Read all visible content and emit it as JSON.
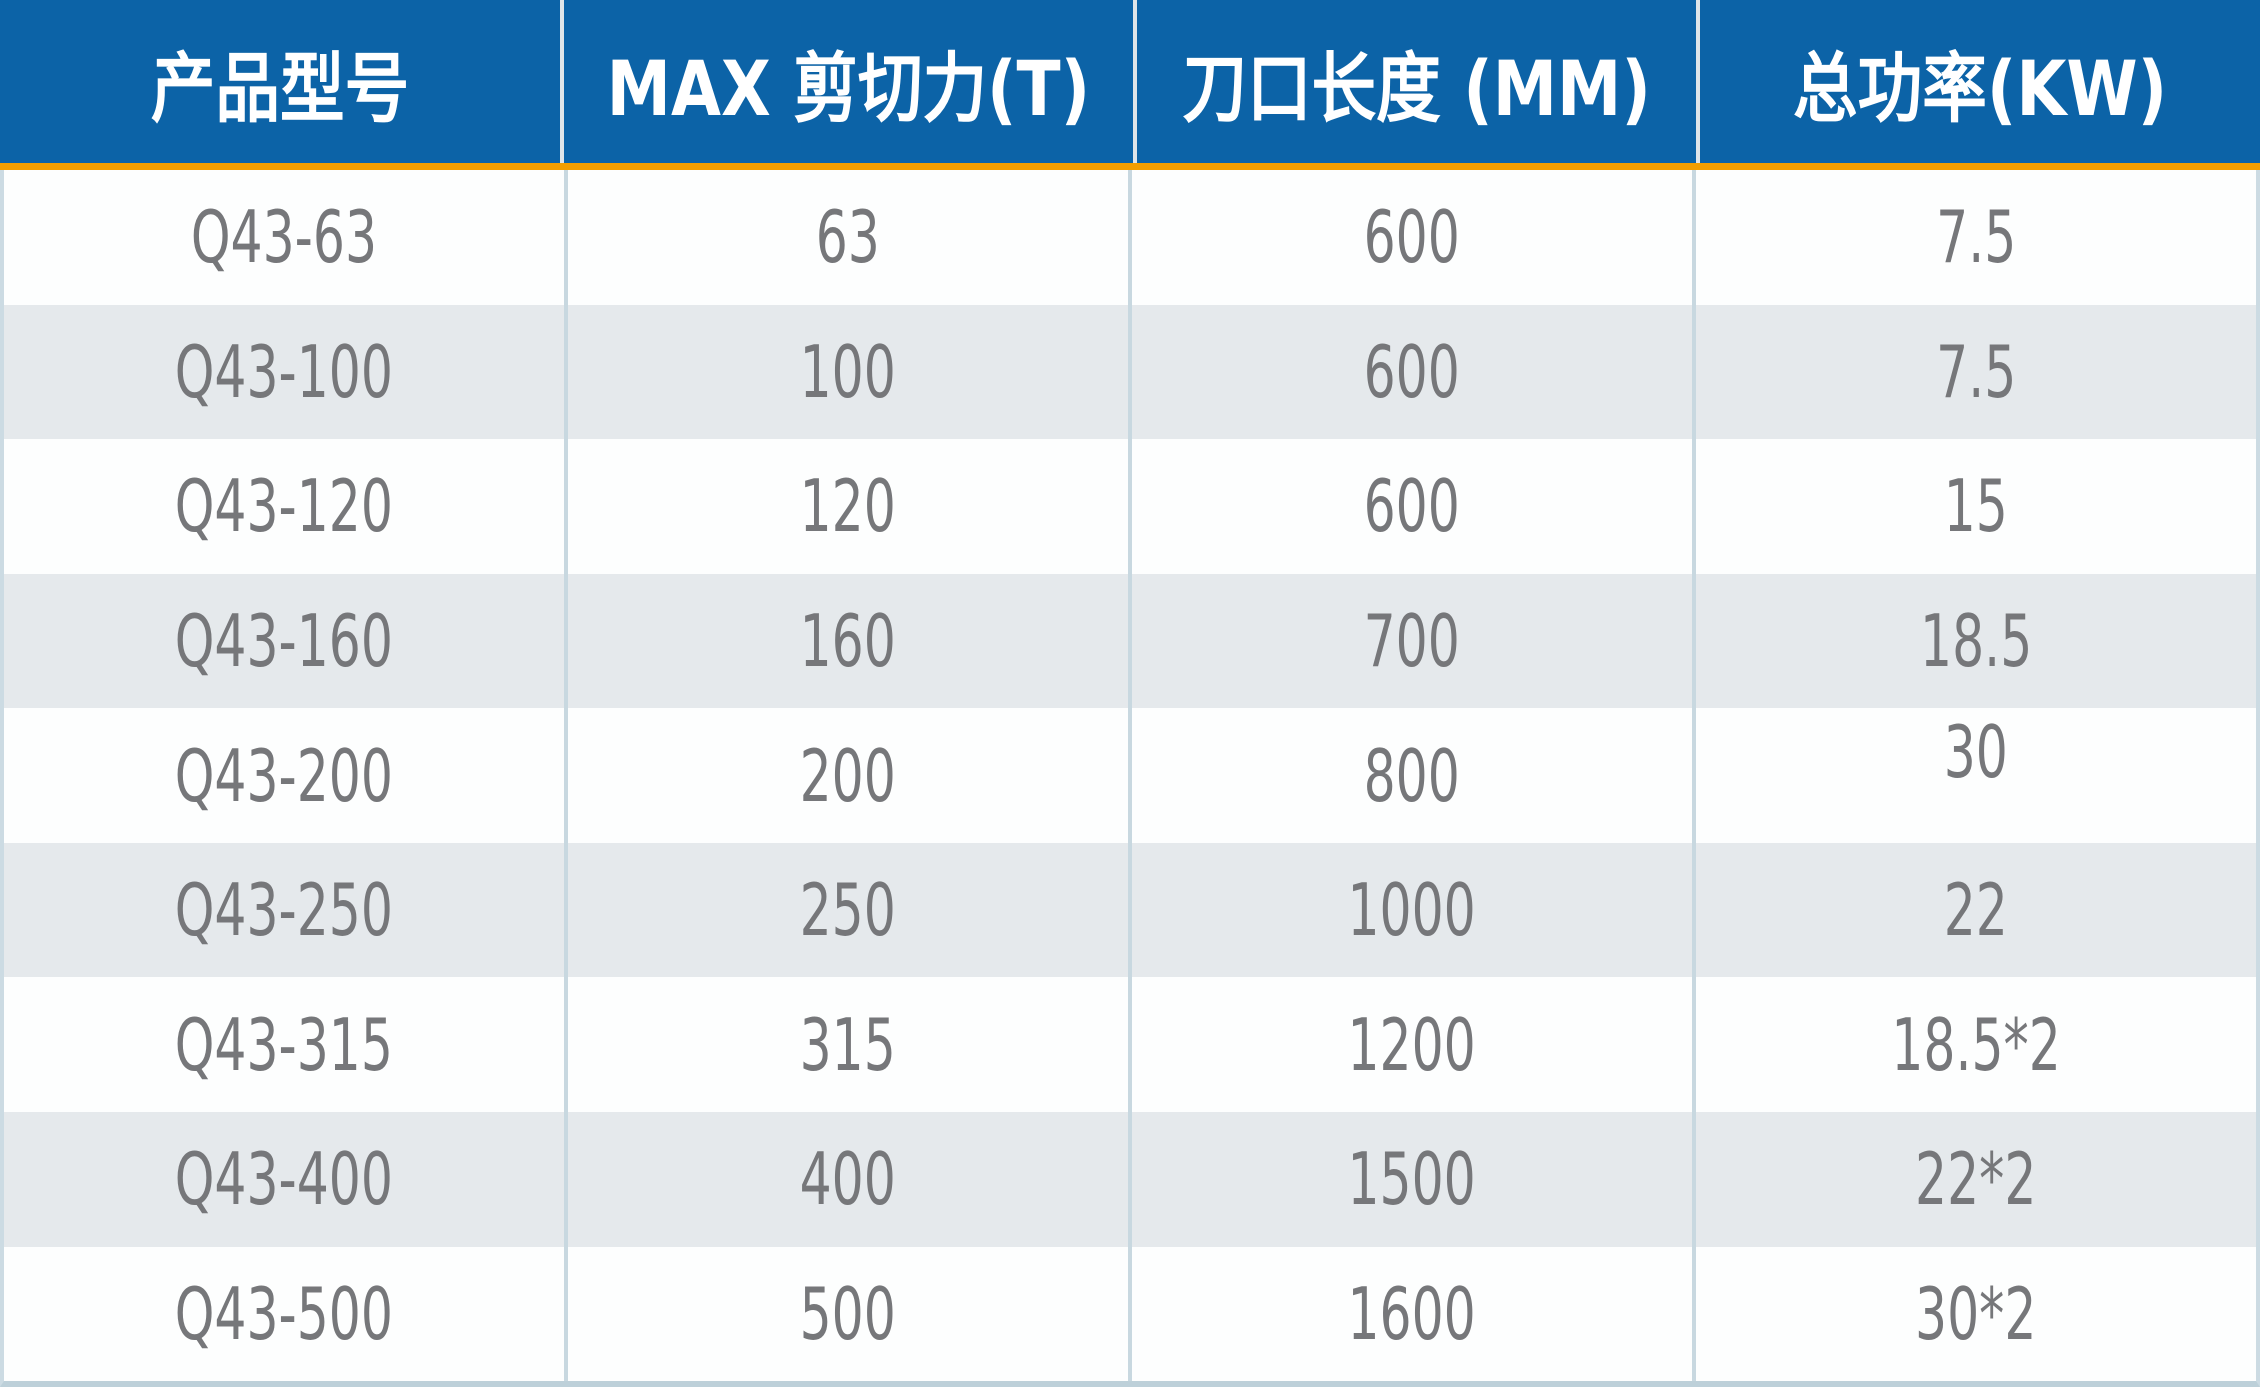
{
  "chart_data": {
    "type": "table",
    "title": "",
    "columns": [
      "产品型号",
      "MAX 剪切力(T)",
      "刀口长度 (MM)",
      "总功率(KW)"
    ],
    "rows": [
      [
        "Q43-63",
        "63",
        "600",
        "7.5"
      ],
      [
        "Q43-100",
        "100",
        "600",
        "7.5"
      ],
      [
        "Q43-120",
        "120",
        "600",
        "15"
      ],
      [
        "Q43-160",
        "160",
        "700",
        "18.5"
      ],
      [
        "Q43-200",
        "200",
        "800",
        "30"
      ],
      [
        "Q43-250",
        "250",
        "1000",
        "22"
      ],
      [
        "Q43-315",
        "315",
        "1200",
        "18.5*2"
      ],
      [
        "Q43-400",
        "400",
        "1500",
        "22*2"
      ],
      [
        "Q43-500",
        "500",
        "1600",
        "30*2"
      ]
    ],
    "layout_hints": {
      "header_background": "#0c63a7",
      "header_text_color": "#ffffff",
      "accent_bar_color": "#f39e00",
      "row_color_odd": "#fdfefe",
      "row_color_even": "#e5e9ec",
      "cell_text_color": "#76777a",
      "grid_line_color": "#c8d8e0",
      "note": "power value 30 of row Q43-200 rendered at top edge of its cell"
    }
  }
}
